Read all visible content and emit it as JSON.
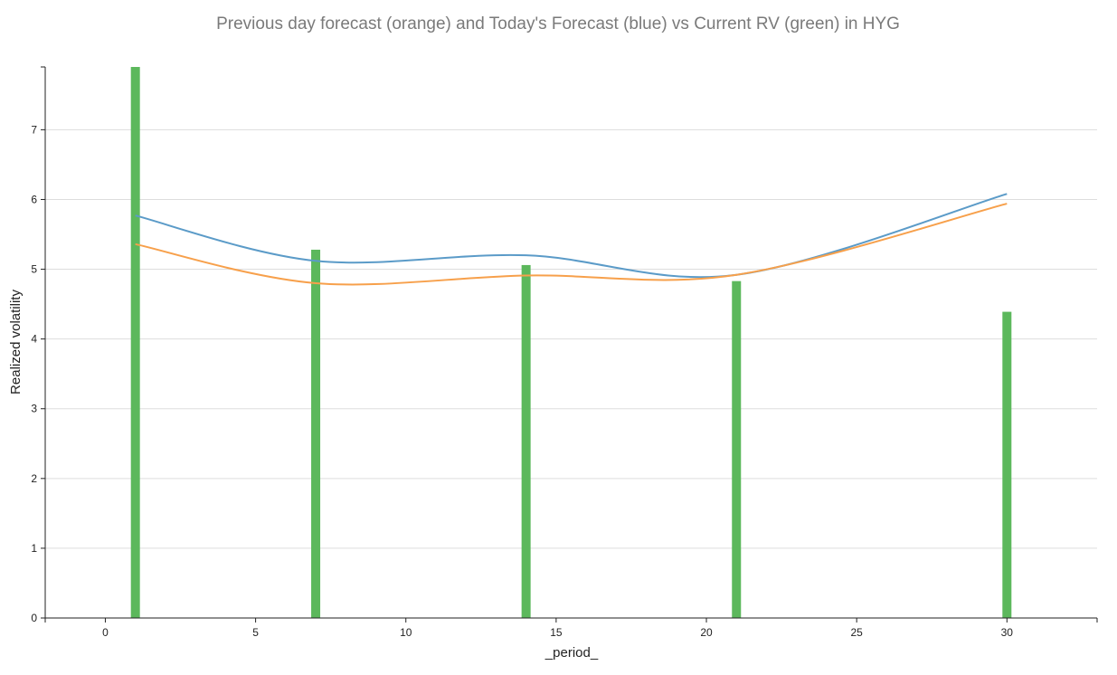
{
  "chart_data": {
    "type": "bar",
    "title": "Previous day forecast (orange) and Today's Forecast (blue) vs Current RV (green) in HYG",
    "xlabel": "_period_",
    "ylabel": "Realized volatility",
    "xlim": [
      -2,
      33
    ],
    "ylim": [
      0,
      7.9
    ],
    "x_ticks": [
      0,
      5,
      10,
      15,
      20,
      25,
      30
    ],
    "y_ticks": [
      0,
      1,
      2,
      3,
      4,
      5,
      6,
      7
    ],
    "grid": true,
    "x": [
      1,
      7,
      14,
      21,
      30
    ],
    "bar_values": [
      7.92,
      5.28,
      5.06,
      4.83,
      4.39
    ],
    "series": [
      {
        "values": [
          5.77,
          5.12,
          5.2,
          4.92,
          6.08
        ],
        "color": "#5b9bc8",
        "type": "line"
      },
      {
        "values": [
          5.36,
          4.8,
          4.91,
          4.92,
          5.94
        ],
        "color": "#f7a04b",
        "type": "line"
      }
    ],
    "bar_color": "#5cb85c"
  }
}
